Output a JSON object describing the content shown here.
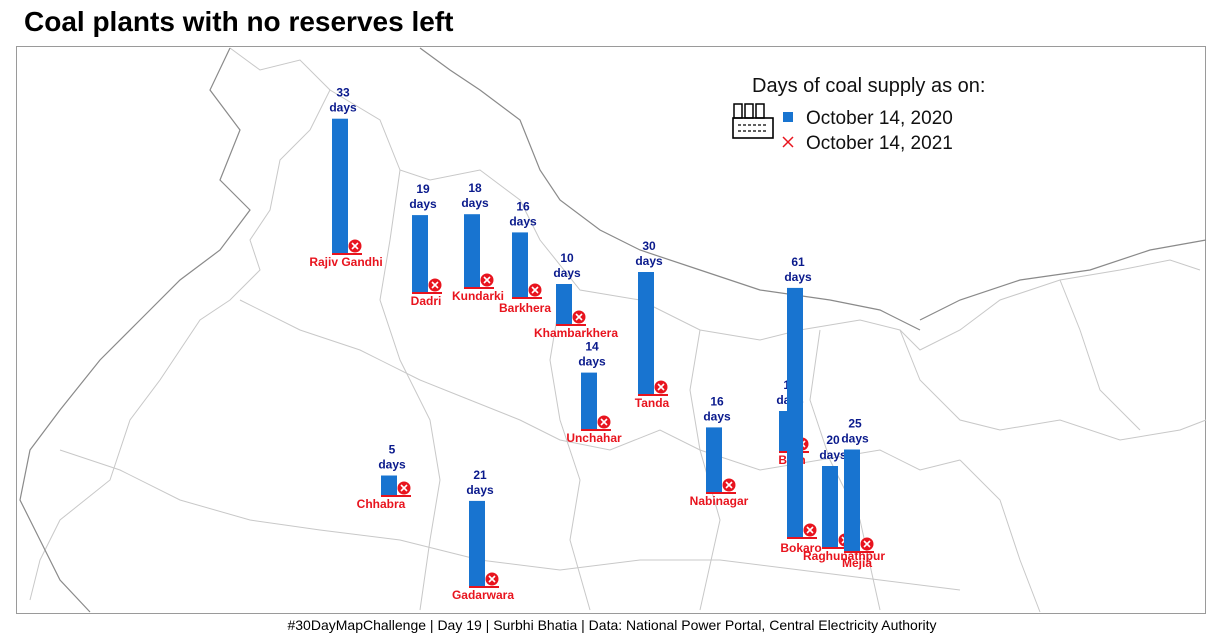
{
  "title": "Coal plants with no reserves left",
  "caption": "#30DayMapChallenge | Day 19 | Surbhi Bhatia | Data: National Power Portal, Central Electricity Authority",
  "colors": {
    "bar": "#1874d0",
    "marker": "#e8141e",
    "value_text": "#0a1a8c",
    "border": "#9a9a9a",
    "map_lines": "#c8c8c8"
  },
  "chart_data": {
    "type": "bar",
    "subtype": "map-anchored vertical bars",
    "unit": "days",
    "legend": {
      "title": "Days of coal supply as on:",
      "placement": "top-right",
      "icon": "factory-icon",
      "items": [
        {
          "label": "October 14, 2020",
          "symbol": "square",
          "color": "#1874d0"
        },
        {
          "label": "October 14, 2021",
          "symbol": "x",
          "color": "#e8141e"
        }
      ]
    },
    "series": [
      {
        "name": "October 14, 2020",
        "values": [
          33,
          19,
          18,
          16,
          10,
          14,
          30,
          16,
          10,
          61,
          20,
          25,
          5,
          21
        ]
      },
      {
        "name": "October 14, 2021",
        "values": [
          0,
          0,
          0,
          0,
          0,
          0,
          0,
          0,
          0,
          0,
          0,
          0,
          0,
          0
        ]
      }
    ],
    "categories": [
      "Rajiv Gandhi",
      "Dadri",
      "Kundarki",
      "Barkhera",
      "Khambarkhera",
      "Unchahar",
      "Tanda",
      "Nabinagar",
      "Barh",
      "Bokaro",
      "Raghunathpur",
      "Mejia",
      "Chhabra",
      "Gadarwara"
    ],
    "value_label_suffix": "days"
  }
}
